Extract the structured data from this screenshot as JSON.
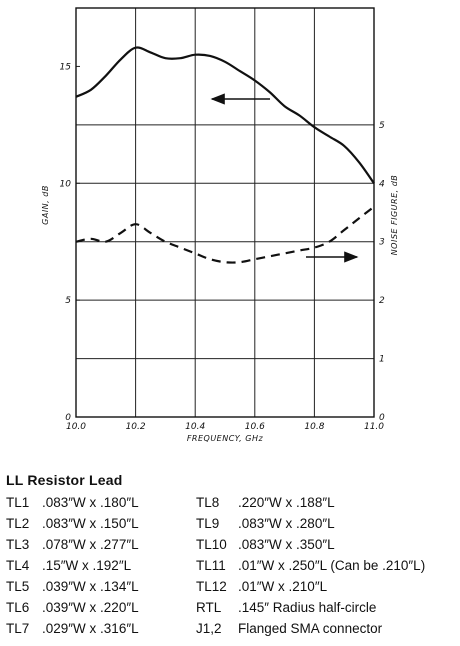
{
  "chart_data": {
    "type": "line",
    "title": "",
    "xlabel": "FREQUENCY, GHz",
    "ylabel_left": "GAIN, dB",
    "ylabel_right": "NOISE FIGURE, dB",
    "xlim": [
      10.0,
      11.0
    ],
    "ylim_left": [
      0,
      17.5
    ],
    "ylim_right": [
      0,
      7
    ],
    "x_ticks": [
      "10.0",
      "10.2",
      "10.4",
      "10.6",
      "10.8",
      "11.0"
    ],
    "y_left_ticks": [
      "0",
      "5",
      "10",
      "15"
    ],
    "y_right_ticks": [
      "0",
      "1",
      "2",
      "3",
      "4",
      "5"
    ],
    "grid": true,
    "series": [
      {
        "axis": "left",
        "style": "solid",
        "x": [
          10.0,
          10.05,
          10.1,
          10.15,
          10.2,
          10.25,
          10.3,
          10.35,
          10.4,
          10.45,
          10.5,
          10.55,
          10.6,
          10.65,
          10.7,
          10.75,
          10.8,
          10.85,
          10.9,
          10.95,
          11.0
        ],
        "values": [
          13.7,
          14.0,
          14.6,
          15.3,
          15.8,
          15.6,
          15.35,
          15.35,
          15.5,
          15.45,
          15.2,
          14.8,
          14.4,
          13.9,
          13.3,
          12.9,
          12.4,
          12.0,
          11.6,
          10.9,
          10.0
        ]
      },
      {
        "axis": "right",
        "style": "dashed",
        "x": [
          10.0,
          10.05,
          10.1,
          10.15,
          10.2,
          10.25,
          10.3,
          10.35,
          10.4,
          10.45,
          10.5,
          10.55,
          10.6,
          10.65,
          10.7,
          10.75,
          10.8,
          10.85,
          10.9,
          10.95,
          11.0
        ],
        "values": [
          3.0,
          3.05,
          3.0,
          3.15,
          3.3,
          3.15,
          3.0,
          2.9,
          2.8,
          2.7,
          2.65,
          2.65,
          2.7,
          2.75,
          2.8,
          2.85,
          2.9,
          3.0,
          3.2,
          3.4,
          3.6
        ]
      }
    ]
  },
  "legend": {
    "heading": "LL Resistor Lead",
    "rows": [
      [
        {
          "id": "TL1",
          "text": ".083″W x .180″L"
        },
        {
          "id": "TL8",
          "text": ".220″W x .188″L"
        }
      ],
      [
        {
          "id": "TL2",
          "text": ".083″W x .150″L"
        },
        {
          "id": "TL9",
          "text": ".083″W x .280″L"
        }
      ],
      [
        {
          "id": "TL3",
          "text": ".078″W x .277″L"
        },
        {
          "id": "TL10",
          "text": ".083″W x .350″L"
        }
      ],
      [
        {
          "id": "TL4",
          "text": ".15″W x .192″L"
        },
        {
          "id": "TL11",
          "text": ".01″W x .250″L (Can be .210″L)"
        }
      ],
      [
        {
          "id": "TL5",
          "text": ".039″W x .134″L"
        },
        {
          "id": "TL12",
          "text": ".01″W x .210″L"
        }
      ],
      [
        {
          "id": "TL6",
          "text": ".039″W x .220″L"
        },
        {
          "id": "RTL",
          "text": ".145″ Radius half-circle"
        }
      ],
      [
        {
          "id": "TL7",
          "text": ".029″W x .316″L"
        },
        {
          "id": "J1,2",
          "text": "Flanged SMA connector"
        }
      ]
    ]
  }
}
